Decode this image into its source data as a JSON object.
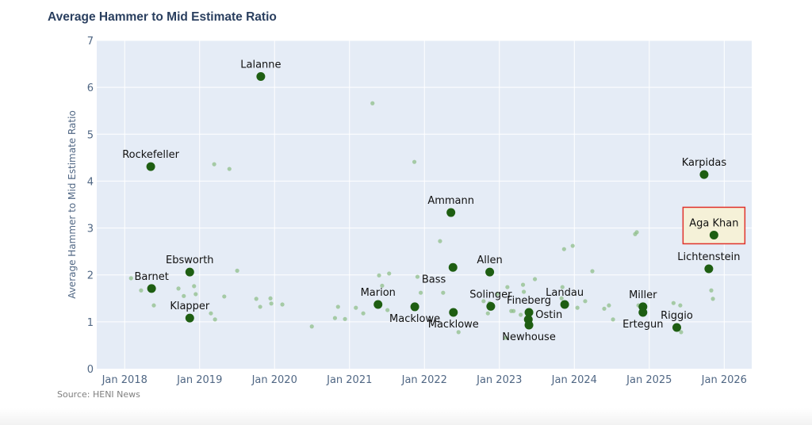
{
  "chart_data": {
    "type": "scatter",
    "title": "Average Hammer to Mid Estimate Ratio",
    "xlabel": "",
    "ylabel": "Average Hammer to Mid Estimate Ratio",
    "xlim": [
      "2017-08-18",
      "2026-05-15"
    ],
    "ylim": [
      0,
      7
    ],
    "x_ticks": [
      "Jan 2018",
      "Jan 2019",
      "Jan 2020",
      "Jan 2021",
      "Jan 2022",
      "Jan 2023",
      "Jan 2024",
      "Jan 2025",
      "Jan 2026"
    ],
    "y_ticks": [
      "0",
      "1",
      "2",
      "3",
      "4",
      "5",
      "6",
      "7"
    ],
    "grid": true,
    "background_color": "#e5ecf6",
    "highlight_color": "#1e5e12",
    "faint_color": "#8fbf8a",
    "highlight_box_color": "#e0322b",
    "highlight_box_fill": "#f5f1d8",
    "highlighted_sales": [
      {
        "label": "Rockefeller",
        "x": "2018-05-08",
        "y": 4.31,
        "textposition": "top"
      },
      {
        "label": "Lalanne",
        "x": "2019-10-26",
        "y": 6.23,
        "textposition": "top"
      },
      {
        "label": "Barnet",
        "x": "2018-05-12",
        "y": 1.71,
        "textposition": "top"
      },
      {
        "label": "Ebsworth",
        "x": "2018-11-14",
        "y": 2.06,
        "textposition": "top"
      },
      {
        "label": "Klapper",
        "x": "2018-11-14",
        "y": 1.08,
        "textposition": "top"
      },
      {
        "label": "Marion",
        "x": "2021-05-20",
        "y": 1.37,
        "textposition": "top"
      },
      {
        "label": "Macklowe",
        "x": "2021-11-15",
        "y": 1.32,
        "textposition": "bottom"
      },
      {
        "label": "Bass",
        "x": "2022-05-20",
        "y": 2.16,
        "textposition": "bottom-left"
      },
      {
        "label": "Macklowe",
        "x": "2022-05-22",
        "y": 1.2,
        "textposition": "bottom"
      },
      {
        "label": "Ammann",
        "x": "2022-05-10",
        "y": 3.33,
        "textposition": "top"
      },
      {
        "label": "Allen",
        "x": "2022-11-15",
        "y": 2.06,
        "textposition": "top"
      },
      {
        "label": "Solinger",
        "x": "2022-11-20",
        "y": 1.33,
        "textposition": "top"
      },
      {
        "label": "Fineberg",
        "x": "2023-05-25",
        "y": 1.2,
        "textposition": "top"
      },
      {
        "label": "Ostin",
        "x": "2023-05-22",
        "y": 1.05,
        "textposition": "right"
      },
      {
        "label": "Newhouse",
        "x": "2023-05-25",
        "y": 0.93,
        "textposition": "bottom"
      },
      {
        "label": "Landau",
        "x": "2023-11-15",
        "y": 1.37,
        "textposition": "top"
      },
      {
        "label": "Miller",
        "x": "2024-12-01",
        "y": 1.32,
        "textposition": "top"
      },
      {
        "label": "Ertegun",
        "x": "2024-12-01",
        "y": 1.2,
        "textposition": "bottom"
      },
      {
        "label": "Riggio",
        "x": "2025-05-15",
        "y": 0.88,
        "textposition": "top"
      },
      {
        "label": "Karpidas",
        "x": "2025-09-25",
        "y": 4.14,
        "textposition": "top"
      },
      {
        "label": "Aga Khan",
        "x": "2025-11-12",
        "y": 2.85,
        "textposition": "top",
        "boxed": true
      },
      {
        "label": "Lichtenstein",
        "x": "2025-10-18",
        "y": 2.13,
        "textposition": "top"
      }
    ],
    "other_sales": [
      [
        "2018-02-01",
        1.93
      ],
      [
        "2018-03-22",
        1.67
      ],
      [
        "2018-05-23",
        1.35
      ],
      [
        "2018-09-20",
        1.71
      ],
      [
        "2018-10-16",
        1.55
      ],
      [
        "2018-12-05",
        1.76
      ],
      [
        "2018-12-13",
        1.59
      ],
      [
        "2019-02-25",
        1.18
      ],
      [
        "2019-03-17",
        1.05
      ],
      [
        "2019-05-01",
        1.54
      ],
      [
        "2019-03-13",
        4.36
      ],
      [
        "2019-05-26",
        4.26
      ],
      [
        "2019-07-03",
        2.09
      ],
      [
        "2019-10-04",
        1.49
      ],
      [
        "2019-10-23",
        1.32
      ],
      [
        "2019-12-12",
        1.5
      ],
      [
        "2019-12-16",
        1.39
      ],
      [
        "2020-02-08",
        1.37
      ],
      [
        "2020-07-01",
        0.9
      ],
      [
        "2020-10-22",
        1.08
      ],
      [
        "2020-11-06",
        1.32
      ],
      [
        "2020-12-10",
        1.06
      ],
      [
        "2021-02-01",
        1.3
      ],
      [
        "2021-03-09",
        1.18
      ],
      [
        "2021-04-23",
        5.66
      ],
      [
        "2021-05-25",
        1.99
      ],
      [
        "2021-06-09",
        1.77
      ],
      [
        "2021-07-13",
        2.03
      ],
      [
        "2021-07-05",
        1.25
      ],
      [
        "2021-11-13",
        4.41
      ],
      [
        "2021-11-28",
        1.96
      ],
      [
        "2021-12-14",
        1.62
      ],
      [
        "2022-03-18",
        2.72
      ],
      [
        "2022-04-02",
        1.62
      ],
      [
        "2022-06-16",
        0.78
      ],
      [
        "2022-11-06",
        1.18
      ],
      [
        "2022-11-14",
        1.4
      ],
      [
        "2022-10-16",
        1.44
      ],
      [
        "2022-12-21",
        1.59
      ],
      [
        "2023-02-01",
        0.66
      ],
      [
        "2023-02-28",
        1.23
      ],
      [
        "2023-03-11",
        1.23
      ],
      [
        "2023-04-15",
        1.15
      ],
      [
        "2023-04-26",
        1.79
      ],
      [
        "2023-04-30",
        1.64
      ],
      [
        "2023-06-23",
        1.91
      ],
      [
        "2023-02-09",
        1.74
      ],
      [
        "2023-10-31",
        1.5
      ],
      [
        "2023-11-04",
        1.74
      ],
      [
        "2023-11-12",
        2.55
      ],
      [
        "2023-12-24",
        2.62
      ],
      [
        "2024-01-16",
        1.3
      ],
      [
        "2024-02-23",
        1.44
      ],
      [
        "2024-03-29",
        2.08
      ],
      [
        "2024-05-26",
        1.28
      ],
      [
        "2024-06-18",
        1.35
      ],
      [
        "2024-07-08",
        1.05
      ],
      [
        "2024-10-24",
        2.87
      ],
      [
        "2024-11-01",
        2.91
      ],
      [
        "2024-11-09",
        1.35
      ],
      [
        "2025-04-29",
        1.4
      ],
      [
        "2025-06-01",
        1.35
      ],
      [
        "2025-06-05",
        0.78
      ],
      [
        "2025-10-30",
        1.67
      ],
      [
        "2025-11-07",
        1.49
      ]
    ]
  },
  "source": "Source: HENI News"
}
